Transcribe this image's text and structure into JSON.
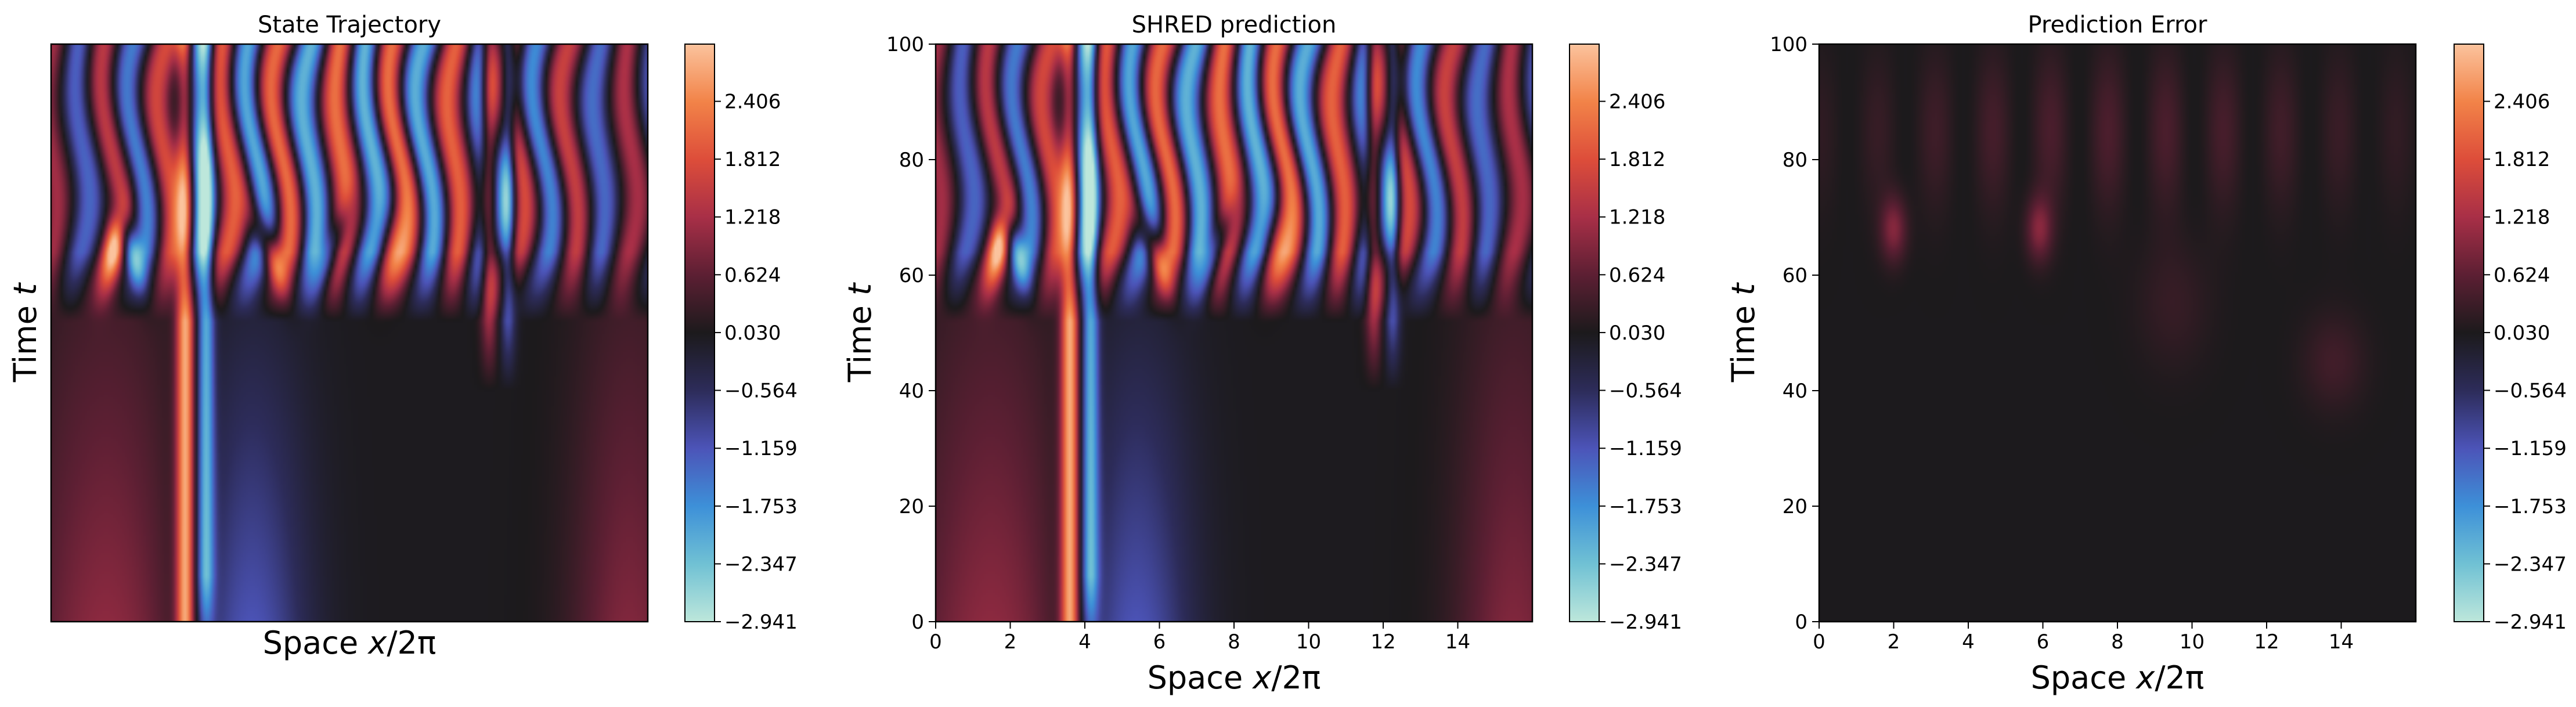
{
  "colormap": {
    "name": "icefire",
    "stops": [
      "#bde7db",
      "#70c1d4",
      "#3d90d8",
      "#4c54b8",
      "#2d2c5a",
      "#1c1a1c",
      "#5c1f33",
      "#a82f47",
      "#dd4d3a",
      "#f28348",
      "#fbc39d"
    ]
  },
  "colorbar": {
    "range": [
      -2.941,
      2.994
    ],
    "ticks": [
      2.406,
      1.812,
      1.218,
      0.624,
      0.03,
      -0.564,
      -1.159,
      -1.753,
      -2.347,
      -2.941
    ],
    "tick_labels": [
      "2.406",
      "1.812",
      "1.218",
      "0.624",
      "0.030",
      "−0.564",
      "−1.159",
      "−1.753",
      "−2.347",
      "−2.941"
    ]
  },
  "chart_data": [
    {
      "type": "heatmap",
      "title": "State Trajectory",
      "xlabel_prefix": "Space ",
      "xlabel_var": "x",
      "xlabel_suffix": "/2π",
      "ylabel_prefix": "Time ",
      "ylabel_var": "t",
      "xlim": [
        0,
        16
      ],
      "ylim": [
        0,
        100
      ],
      "show_ticks": false,
      "x_ticks": [],
      "y_ticks": [],
      "field": "state"
    },
    {
      "type": "heatmap",
      "title": "SHRED prediction",
      "xlabel_prefix": "Space ",
      "xlabel_var": "x",
      "xlabel_suffix": "/2π",
      "ylabel_prefix": "Time ",
      "ylabel_var": "t",
      "xlim": [
        0,
        16
      ],
      "ylim": [
        0,
        100
      ],
      "show_ticks": true,
      "x_ticks": [
        "0",
        "2",
        "4",
        "6",
        "8",
        "10",
        "12",
        "14"
      ],
      "x_tick_values": [
        0,
        2,
        4,
        6,
        8,
        10,
        12,
        14
      ],
      "y_ticks": [
        "0",
        "20",
        "40",
        "60",
        "80",
        "100"
      ],
      "y_tick_values": [
        0,
        20,
        40,
        60,
        80,
        100
      ],
      "field": "state"
    },
    {
      "type": "heatmap",
      "title": "Prediction Error",
      "xlabel_prefix": "Space ",
      "xlabel_var": "x",
      "xlabel_suffix": "/2π",
      "ylabel_prefix": "Time ",
      "ylabel_var": "t",
      "xlim": [
        0,
        16
      ],
      "ylim": [
        0,
        100
      ],
      "show_ticks": true,
      "x_ticks": [
        "0",
        "2",
        "4",
        "6",
        "8",
        "10",
        "12",
        "14"
      ],
      "x_tick_values": [
        0,
        2,
        4,
        6,
        8,
        10,
        12,
        14
      ],
      "y_ticks": [
        "0",
        "20",
        "40",
        "60",
        "80",
        "100"
      ],
      "y_tick_values": [
        0,
        20,
        40,
        60,
        80,
        100
      ],
      "field": "error"
    }
  ]
}
